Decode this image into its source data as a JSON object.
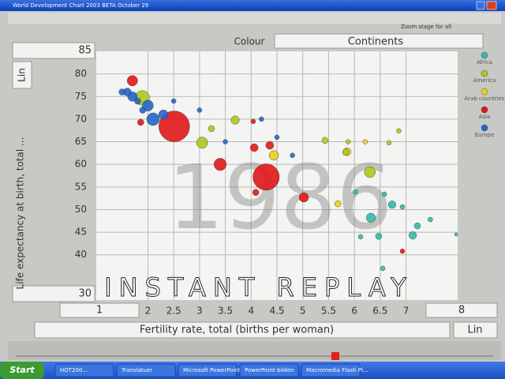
{
  "window": {
    "title": "World Development Chart 2003 BETA October 29"
  },
  "toolbar": {
    "zoom_label": "Zoom stage for all",
    "colour_label": "Colour",
    "colour_by": "Continents"
  },
  "chart_data": {
    "type": "bubble",
    "year_label": "1986",
    "x_label": "Fertility rate, total (births per woman)",
    "y_label": "Life expectancy at birth, total ...",
    "x_scale_label": "Lin",
    "y_scale_label": "Lin",
    "xlim": [
      1,
      8
    ],
    "ylim": [
      30,
      85
    ],
    "xticks": [
      2,
      2.5,
      3,
      3.5,
      4,
      4.5,
      5,
      5.5,
      6,
      6.5,
      7
    ],
    "yticks": [
      40,
      45,
      50,
      55,
      60,
      65,
      70,
      75,
      80
    ],
    "grid": true,
    "series": [
      {
        "name": "Africa",
        "color": "#33bba8",
        "x": [
          6.32,
          6.73,
          7.13,
          6.47,
          6.93,
          7.47,
          7.22,
          6.02,
          6.58,
          6.12,
          7.97,
          6.55
        ],
        "values": [
          48.2,
          51.1,
          44.3,
          44.1,
          50.6,
          47.8,
          46.4,
          53.9,
          53.4,
          44,
          44.5,
          37
        ],
        "sizes": [
          95,
          65,
          65,
          45,
          25,
          25,
          45,
          25,
          25,
          25,
          12,
          25
        ]
      },
      {
        "name": "America",
        "color": "#a8cc1a",
        "x": [
          1.89,
          3.05,
          3.69,
          3.23,
          5.43,
          5.83,
          6.3,
          5.88,
          6.86,
          6.67
        ],
        "values": [
          74.7,
          64.8,
          69.8,
          67.9,
          65.3,
          62.7,
          58.3,
          65,
          67.4,
          64.8
        ],
        "sizes": [
          240,
          140,
          78,
          45,
          45,
          45,
          135,
          25,
          25,
          25
        ]
      },
      {
        "name": "Arab countries",
        "color": "#e8d21a",
        "x": [
          4.44,
          5.86,
          5.68,
          6.21
        ],
        "values": [
          62,
          62.8,
          51.3,
          65
        ],
        "sizes": [
          100,
          70,
          45,
          25
        ]
      },
      {
        "name": "Asia",
        "color": "#e01818",
        "x": [
          2.51,
          4.29,
          1.7,
          3.4,
          4.06,
          4.36,
          5.02,
          4.09,
          6.93,
          1.86,
          4.04
        ],
        "values": [
          68.4,
          57.2,
          78.5,
          60,
          63.7,
          64.2,
          52.7,
          53.8,
          40.8,
          69.3,
          69.5
        ],
        "sizes": [
          1060,
          780,
          121,
          170,
          70,
          70,
          100,
          45,
          25,
          45,
          25
        ]
      },
      {
        "name": "Europe",
        "color": "#2266cc",
        "x": [
          1.6,
          1.7,
          1.8,
          1.9,
          2.0,
          2.3,
          2.1,
          1.5,
          2.5,
          3.5,
          3.0,
          4.2,
          4.5,
          4.8
        ],
        "values": [
          76,
          75,
          74,
          72,
          73,
          71,
          70,
          76,
          74,
          65,
          72,
          70,
          66,
          62
        ],
        "sizes": [
          70,
          100,
          45,
          45,
          135,
          100,
          178,
          45,
          25,
          25,
          25,
          25,
          25,
          25
        ]
      }
    ]
  },
  "overlay": {
    "text": "INSTANT REPLAY"
  },
  "taskbar": {
    "start": "Start",
    "items": [
      "HOT200...",
      "Translatuer",
      "Microsoft PowerPoint",
      "PowerPoint-bilden",
      "Macromedia Flash Pl..."
    ]
  }
}
